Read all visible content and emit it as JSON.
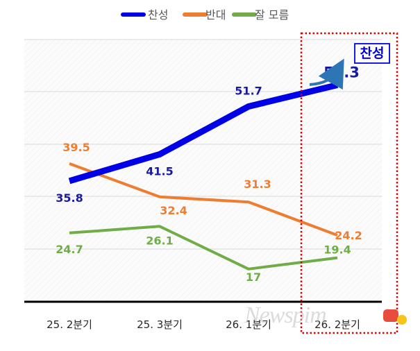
{
  "chart_data": {
    "type": "line",
    "categories": [
      "25. 2분기",
      "25. 3분기",
      "26. 1분기",
      "26. 2분기"
    ],
    "series": [
      {
        "name": "찬성",
        "values": [
          35.8,
          41.5,
          51.7,
          56.3
        ],
        "color": "#0000e6"
      },
      {
        "name": "반대",
        "values": [
          39.5,
          32.4,
          31.3,
          24.2
        ],
        "color": "#ed7d31"
      },
      {
        "name": "잘 모름",
        "values": [
          24.7,
          26.1,
          17,
          19.4
        ],
        "color": "#70ad47"
      }
    ],
    "title": "",
    "xlabel": "",
    "ylabel": "",
    "ylim": [
      10,
      66
    ],
    "grid": true,
    "legend": "top-center",
    "highlight": {
      "category": "26. 2분기",
      "label": "찬성",
      "color": "#e00000"
    }
  },
  "watermark": {
    "text": "Newspim"
  }
}
